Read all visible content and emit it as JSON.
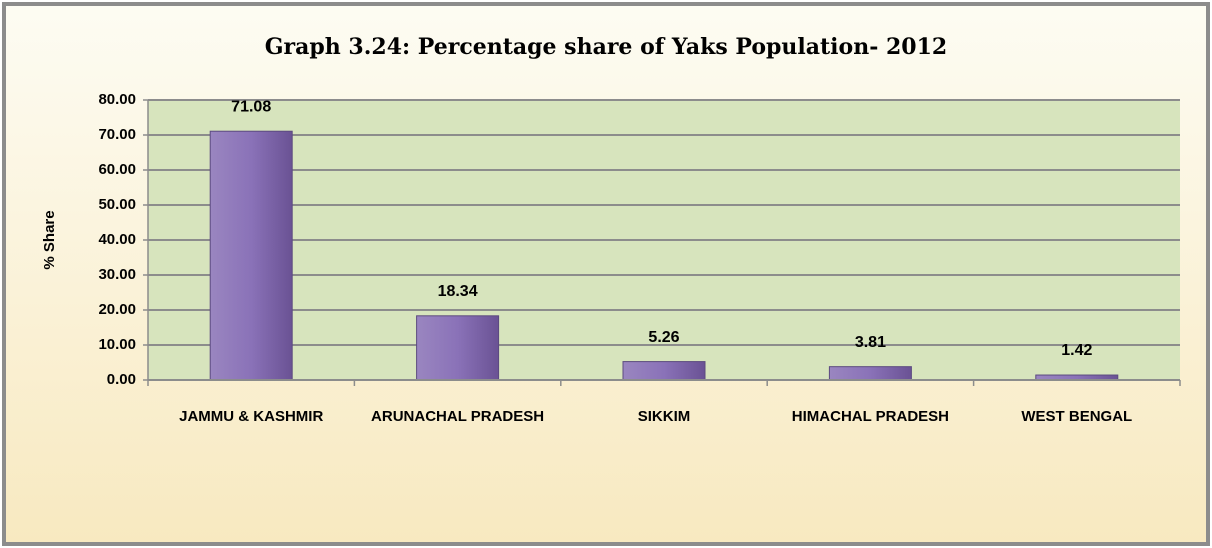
{
  "chart_data": {
    "type": "bar",
    "title": "Graph 3.24: Percentage share of Yaks Population- 2012",
    "y_label": "% Share",
    "categories": [
      "JAMMU & KASHMIR",
      "ARUNACHAL PRADESH",
      "SIKKIM",
      "HIMACHAL PRADESH",
      "WEST BENGAL"
    ],
    "values": [
      71.08,
      18.34,
      5.26,
      3.81,
      1.42
    ],
    "color": "#8064a2",
    "ylim": [
      0,
      80
    ],
    "yticks": [
      {
        "value": 0,
        "label": "0.00"
      },
      {
        "value": 10,
        "label": "10.00"
      },
      {
        "value": 20,
        "label": "20.00"
      },
      {
        "value": 30,
        "label": "30.00"
      },
      {
        "value": 40,
        "label": "40.00"
      },
      {
        "value": 50,
        "label": "50.00"
      },
      {
        "value": 60,
        "label": "60.00"
      },
      {
        "value": 70,
        "label": "70.00"
      },
      {
        "value": 80,
        "label": "80.00"
      }
    ],
    "grid": true
  }
}
